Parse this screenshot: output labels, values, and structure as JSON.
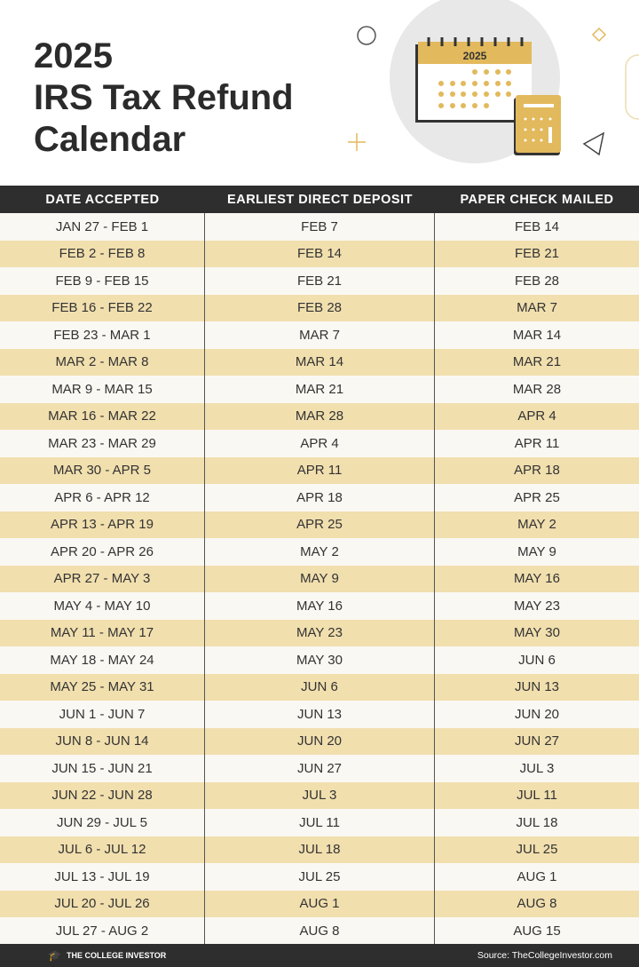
{
  "header": {
    "title_lines": [
      "2025",
      "IRS Tax Refund",
      "Calendar"
    ],
    "illustration_year": "2025"
  },
  "table": {
    "columns": [
      "DATE ACCEPTED",
      "EARLIEST DIRECT DEPOSIT",
      "PAPER CHECK MAILED"
    ],
    "rows": [
      [
        "JAN 27 - FEB 1",
        "FEB 7",
        "FEB 14"
      ],
      [
        "FEB 2 - FEB 8",
        "FEB 14",
        "FEB 21"
      ],
      [
        "FEB 9 - FEB 15",
        "FEB 21",
        "FEB 28"
      ],
      [
        "FEB 16 - FEB 22",
        "FEB 28",
        "MAR 7"
      ],
      [
        "FEB 23 - MAR 1",
        "MAR 7",
        "MAR 14"
      ],
      [
        "MAR 2 - MAR 8",
        "MAR 14",
        "MAR 21"
      ],
      [
        "MAR 9 - MAR 15",
        "MAR 21",
        "MAR 28"
      ],
      [
        "MAR 16 - MAR 22",
        "MAR 28",
        "APR 4"
      ],
      [
        "MAR 23 - MAR 29",
        "APR 4",
        "APR 11"
      ],
      [
        "MAR 30 - APR 5",
        "APR 11",
        "APR 18"
      ],
      [
        "APR 6 - APR 12",
        "APR 18",
        "APR 25"
      ],
      [
        "APR 13 - APR 19",
        "APR 25",
        "MAY 2"
      ],
      [
        "APR 20 - APR 26",
        "MAY 2",
        "MAY 9"
      ],
      [
        "APR 27 - MAY 3",
        "MAY 9",
        "MAY 16"
      ],
      [
        "MAY 4 - MAY 10",
        "MAY 16",
        "MAY 23"
      ],
      [
        "MAY 11 - MAY 17",
        "MAY 23",
        "MAY 30"
      ],
      [
        "MAY 18 - MAY 24",
        "MAY 30",
        "JUN 6"
      ],
      [
        "MAY 25 - MAY 31",
        "JUN 6",
        "JUN 13"
      ],
      [
        "JUN 1 - JUN 7",
        "JUN 13",
        "JUN 20"
      ],
      [
        "JUN 8 - JUN 14",
        "JUN 20",
        "JUN 27"
      ],
      [
        "JUN 15 - JUN 21",
        "JUN 27",
        "JUL 3"
      ],
      [
        "JUN 22 - JUN 28",
        "JUL 3",
        "JUL 11"
      ],
      [
        "JUN 29 - JUL 5",
        "JUL 11",
        "JUL 18"
      ],
      [
        "JUL 6 - JUL 12",
        "JUL 18",
        "JUL 25"
      ],
      [
        "JUL 13 - JUL 19",
        "JUL 25",
        "AUG 1"
      ],
      [
        "JUL 20 - JUL 26",
        "AUG 1",
        "AUG 8"
      ],
      [
        "JUL 27 - AUG 2",
        "AUG 8",
        "AUG 15"
      ]
    ]
  },
  "footer": {
    "brand": "THE COLLEGE INVESTOR",
    "source": "Source: TheCollegeInvestor.com"
  },
  "colors": {
    "dark": "#2e2e2e",
    "stripe": "#f1dfae",
    "gold": "#e2b95c",
    "light": "#faf8f3"
  }
}
